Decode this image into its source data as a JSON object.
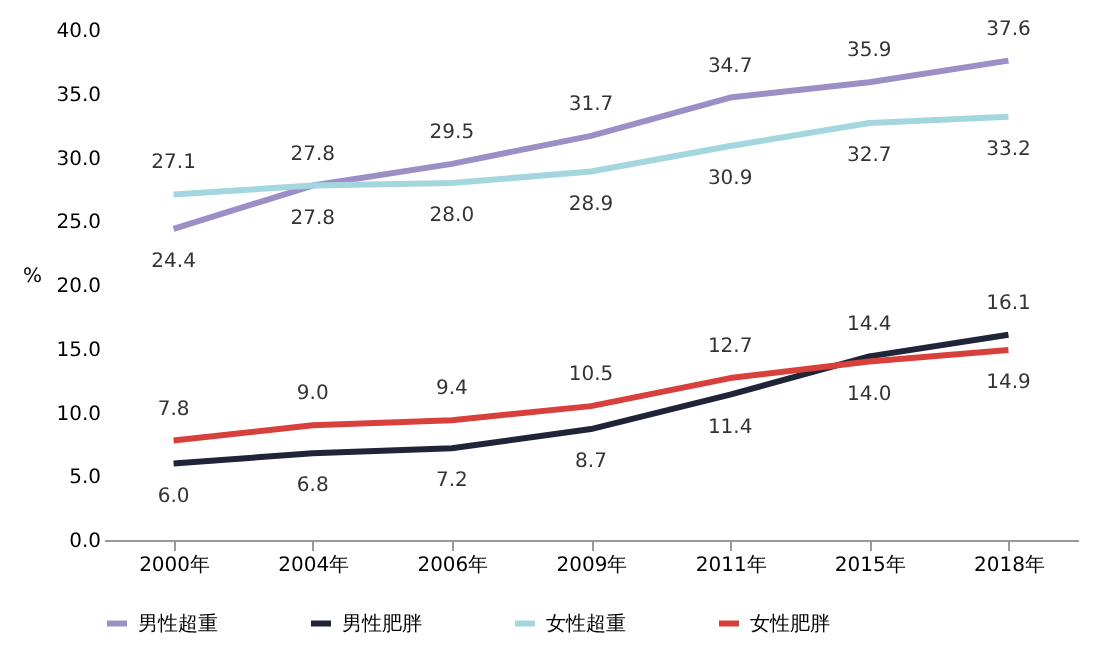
{
  "chart_data": {
    "type": "line",
    "ylabel": "%",
    "categories": [
      "2000年",
      "2004年",
      "2006年",
      "2009年",
      "2011年",
      "2015年",
      "2018年"
    ],
    "series": [
      {
        "name": "男性超重",
        "color": "#9b8fc6",
        "values": [
          24.4,
          27.8,
          29.5,
          31.7,
          34.7,
          35.9,
          37.6
        ],
        "value_labels": [
          "24.4",
          "27.8",
          "29.5",
          "31.7",
          "34.7",
          "35.9",
          "37.6"
        ]
      },
      {
        "name": "男性肥胖",
        "color": "#1f2438",
        "values": [
          6.0,
          6.8,
          7.2,
          8.7,
          11.4,
          14.4,
          16.1
        ],
        "value_labels": [
          "6.0",
          "6.8",
          "7.2",
          "8.7",
          "11.4",
          "14.4",
          "16.1"
        ]
      },
      {
        "name": "女性超重",
        "color": "#a3d6df",
        "values": [
          27.1,
          27.8,
          28.0,
          28.9,
          30.9,
          32.7,
          33.2
        ],
        "value_labels": [
          "27.1",
          "27.8",
          "28.0",
          "28.9",
          "30.9",
          "32.7",
          "33.2"
        ]
      },
      {
        "name": "女性肥胖",
        "color": "#d8403c",
        "values": [
          7.8,
          9.0,
          9.4,
          10.5,
          12.7,
          14.0,
          14.9
        ],
        "value_labels": [
          "7.8",
          "9.0",
          "9.4",
          "10.5",
          "12.7",
          "14.0",
          "14.9"
        ]
      }
    ],
    "ylim": [
      0,
      40
    ],
    "yticks": [
      {
        "value": 0,
        "label": "0.0"
      },
      {
        "value": 5,
        "label": "5.0"
      },
      {
        "value": 10,
        "label": "10.0"
      },
      {
        "value": 15,
        "label": "15.0"
      },
      {
        "value": 20,
        "label": "20.0"
      },
      {
        "value": 25,
        "label": "25.0"
      },
      {
        "value": 30,
        "label": "30.0"
      },
      {
        "value": 35,
        "label": "35.0"
      },
      {
        "value": 40,
        "label": "40.0"
      }
    ],
    "grid": false,
    "legend": "bottom",
    "marker": "none",
    "line_style": "solid",
    "data_labels": true
  }
}
